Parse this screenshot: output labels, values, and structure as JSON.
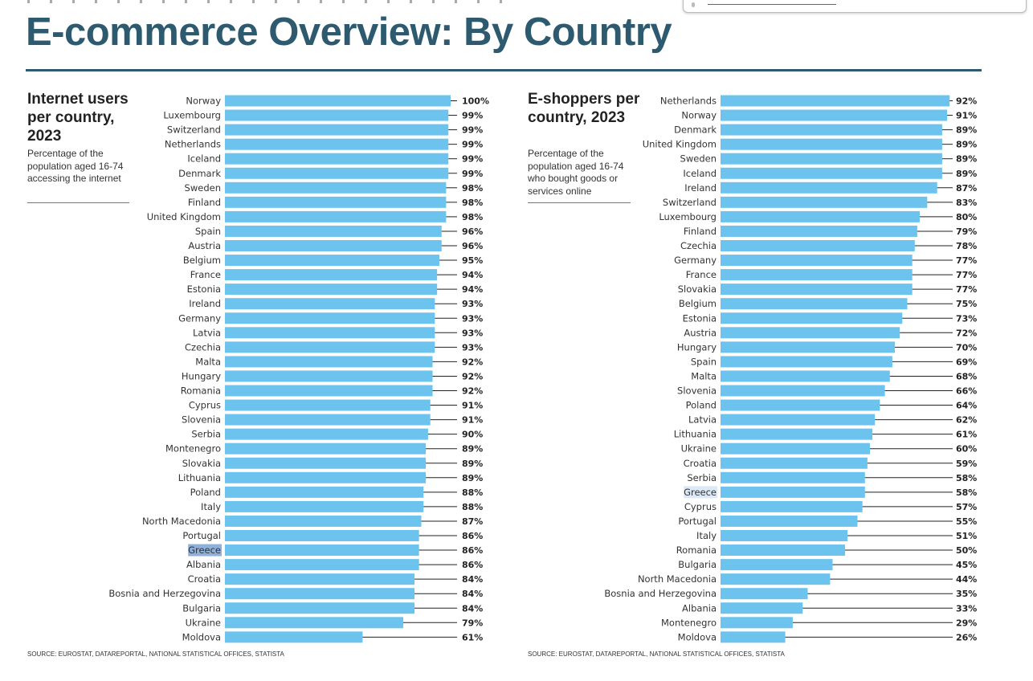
{
  "page_title": "E-commerce Overview: By Country",
  "left_panel": {
    "title": "Internet users per country, 2023",
    "description": "Percentage of the population aged 16-74 accessing the internet",
    "source": "SOURCE: EUROSTAT, DATAREPORTAL, NATIONAL STATISTICAL OFFICES, STATISTA"
  },
  "right_panel": {
    "title": "E-shoppers per country, 2023",
    "description": "Percentage of the population aged 16-74 who bought goods or services online",
    "source": "SOURCE: EUROSTAT, DATAREPORTAL, NATIONAL STATISTICAL OFFICES, STATISTA"
  },
  "chart_data": [
    {
      "type": "bar",
      "orientation": "horizontal",
      "title": "Internet users per country, 2023",
      "unit": "%",
      "xlim": [
        0,
        100
      ],
      "highlight": "Greece",
      "highlight_color": "#8fb0d8",
      "bar_color": "#6cc4ee",
      "categories": [
        "Norway",
        "Luxembourg",
        "Switzerland",
        "Netherlands",
        "Iceland",
        "Denmark",
        "Sweden",
        "Finland",
        "United Kingdom",
        "Spain",
        "Austria",
        "Belgium",
        "France",
        "Estonia",
        "Ireland",
        "Germany",
        "Latvia",
        "Czechia",
        "Malta",
        "Hungary",
        "Romania",
        "Cyprus",
        "Slovenia",
        "Serbia",
        "Montenegro",
        "Slovakia",
        "Lithuania",
        "Poland",
        "Italy",
        "North Macedonia",
        "Portugal",
        "Greece",
        "Albania",
        "Croatia",
        "Bosnia and Herzegovina",
        "Bulgaria",
        "Ukraine",
        "Moldova"
      ],
      "values": [
        100,
        99,
        99,
        99,
        99,
        99,
        98,
        98,
        98,
        96,
        96,
        95,
        94,
        94,
        93,
        93,
        93,
        93,
        92,
        92,
        92,
        91,
        91,
        90,
        89,
        89,
        89,
        88,
        88,
        87,
        86,
        86,
        86,
        84,
        84,
        84,
        79,
        61
      ]
    },
    {
      "type": "bar",
      "orientation": "horizontal",
      "title": "E-shoppers per country, 2023",
      "unit": "%",
      "xlim": [
        0,
        100
      ],
      "highlight": "Greece",
      "highlight_color": "#dce9f7",
      "bar_color": "#6cc4ee",
      "categories": [
        "Netherlands",
        "Norway",
        "Denmark",
        "United Kingdom",
        "Sweden",
        "Iceland",
        "Ireland",
        "Switzerland",
        "Luxembourg",
        "Finland",
        "Czechia",
        "Germany",
        "France",
        "Slovakia",
        "Belgium",
        "Estonia",
        "Austria",
        "Hungary",
        "Spain",
        "Malta",
        "Slovenia",
        "Poland",
        "Latvia",
        "Lithuania",
        "Ukraine",
        "Croatia",
        "Serbia",
        "Greece",
        "Cyprus",
        "Portugal",
        "Italy",
        "Romania",
        "Bulgaria",
        "North Macedonia",
        "Bosnia and Herzegovina",
        "Albania",
        "Montenegro",
        "Moldova"
      ],
      "values": [
        92,
        91,
        89,
        89,
        89,
        89,
        87,
        83,
        80,
        79,
        78,
        77,
        77,
        77,
        75,
        73,
        72,
        70,
        69,
        68,
        66,
        64,
        62,
        61,
        60,
        59,
        58,
        58,
        57,
        55,
        51,
        50,
        45,
        44,
        35,
        33,
        29,
        26
      ]
    }
  ]
}
